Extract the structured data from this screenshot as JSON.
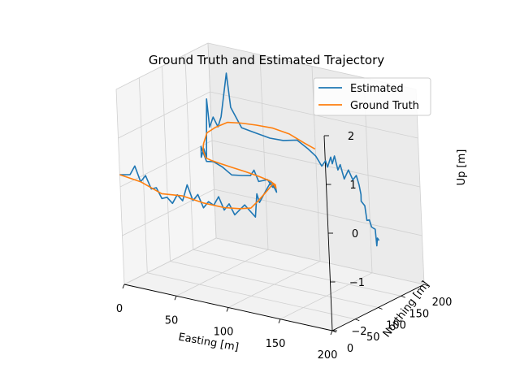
{
  "chart_data": {
    "type": "line",
    "projection": "3d",
    "title": "Ground Truth and Estimated Trajectory",
    "xlabel": "Easting [m]",
    "ylabel": "Northing [m]",
    "zlabel": "Up [m]",
    "xlim": [
      0,
      200
    ],
    "ylim": [
      0,
      200
    ],
    "zlim": [
      -2,
      2
    ],
    "xticks": [
      "0",
      "50",
      "100",
      "150",
      "200"
    ],
    "yticks": [
      "0",
      "50",
      "100",
      "150",
      "200"
    ],
    "zticks": [
      "−2",
      "−1",
      "0",
      "1",
      "2"
    ],
    "grid": true,
    "legend_position": "top-right",
    "series": [
      {
        "name": "Estimated",
        "color": "#1f77b4",
        "points": [
          [
            0,
            0,
            0.25
          ],
          [
            10,
            0,
            0.3
          ],
          [
            15,
            0,
            0.5
          ],
          [
            20,
            0,
            0.2
          ],
          [
            25,
            0,
            0.35
          ],
          [
            30,
            0,
            0.1
          ],
          [
            35,
            0,
            0.15
          ],
          [
            40,
            0,
            -0.05
          ],
          [
            45,
            0,
            0.0
          ],
          [
            50,
            0,
            -0.1
          ],
          [
            55,
            0,
            0.1
          ],
          [
            60,
            0,
            0.0
          ],
          [
            65,
            0,
            0.35
          ],
          [
            70,
            0,
            0.05
          ],
          [
            75,
            0,
            0.2
          ],
          [
            80,
            0,
            -0.05
          ],
          [
            85,
            0,
            0.1
          ],
          [
            90,
            0,
            0.05
          ],
          [
            95,
            0,
            0.25
          ],
          [
            100,
            0,
            0.0
          ],
          [
            105,
            0,
            0.15
          ],
          [
            110,
            0,
            -0.05
          ],
          [
            120,
            0,
            0.2
          ],
          [
            130,
            0,
            0.0
          ],
          [
            130,
            5,
            0.45
          ],
          [
            130,
            10,
            0.25
          ],
          [
            132,
            20,
            0.45
          ],
          [
            133,
            30,
            0.6
          ],
          [
            133,
            38,
            0.4
          ],
          [
            131,
            45,
            0.3
          ],
          [
            127,
            52,
            0.35
          ],
          [
            122,
            57,
            0.3
          ],
          [
            115,
            62,
            0.4
          ],
          [
            105,
            65,
            0.3
          ],
          [
            100,
            67,
            0.5
          ],
          [
            95,
            70,
            0.35
          ],
          [
            86,
            72,
            0.3
          ],
          [
            75,
            74,
            0.25
          ],
          [
            65,
            77,
            0.35
          ],
          [
            55,
            80,
            0.4
          ],
          [
            47,
            83,
            0.35
          ],
          [
            40,
            88,
            0.6
          ],
          [
            38,
            92,
            0.35
          ],
          [
            38,
            98,
            0.5
          ],
          [
            39,
            101,
            0.3
          ],
          [
            40,
            104,
            1.5
          ],
          [
            40,
            108,
            0.9
          ],
          [
            42,
            112,
            1.1
          ],
          [
            45,
            115,
            0.9
          ],
          [
            47,
            118,
            1.1
          ],
          [
            52,
            122,
            2.0
          ],
          [
            54,
            124,
            1.3
          ],
          [
            62,
            128,
            0.9
          ],
          [
            72,
            130,
            0.85
          ],
          [
            88,
            130,
            0.8
          ],
          [
            100,
            132,
            0.8
          ],
          [
            112,
            135,
            0.85
          ],
          [
            120,
            139,
            0.7
          ],
          [
            126,
            143,
            0.55
          ],
          [
            130,
            146,
            0.35
          ],
          [
            132,
            150,
            0.45
          ],
          [
            132,
            154,
            0.3
          ],
          [
            134,
            157,
            0.5
          ],
          [
            134,
            160,
            0.35
          ],
          [
            135,
            163,
            0.5
          ],
          [
            136,
            167,
            0.2
          ],
          [
            137,
            170,
            0.3
          ],
          [
            139,
            173,
            0.0
          ],
          [
            143,
            174,
            0.2
          ],
          [
            146,
            176,
            0.0
          ],
          [
            149,
            177,
            0.1
          ],
          [
            150,
            180,
            -0.1
          ],
          [
            151,
            181,
            -0.3
          ],
          [
            150,
            183,
            -0.45
          ],
          [
            152,
            186,
            -0.55
          ],
          [
            153,
            187,
            -0.85
          ],
          [
            154,
            190,
            -0.85
          ],
          [
            155,
            192,
            -1.0
          ],
          [
            157,
            195,
            -1.05
          ],
          [
            157,
            197,
            -1.4
          ],
          [
            157,
            199,
            -1.25
          ],
          [
            158,
            200,
            -1.3
          ]
        ]
      },
      {
        "name": "Ground Truth",
        "color": "#ff7f0e",
        "points": [
          [
            0,
            0,
            0.25
          ],
          [
            20,
            0,
            0.2
          ],
          [
            40,
            0,
            0.05
          ],
          [
            60,
            0,
            0.1
          ],
          [
            80,
            0,
            0.05
          ],
          [
            100,
            0,
            0.05
          ],
          [
            115,
            0,
            0.1
          ],
          [
            125,
            2,
            0.15
          ],
          [
            130,
            8,
            0.3
          ],
          [
            133,
            20,
            0.45
          ],
          [
            134,
            32,
            0.55
          ],
          [
            132,
            42,
            0.4
          ],
          [
            127,
            52,
            0.4
          ],
          [
            118,
            60,
            0.4
          ],
          [
            105,
            66,
            0.4
          ],
          [
            90,
            71,
            0.4
          ],
          [
            75,
            75,
            0.4
          ],
          [
            62,
            79,
            0.4
          ],
          [
            52,
            82,
            0.4
          ],
          [
            45,
            86,
            0.4
          ],
          [
            40,
            92,
            0.5
          ],
          [
            38,
            98,
            0.6
          ],
          [
            39,
            104,
            0.8
          ],
          [
            44,
            112,
            0.9
          ],
          [
            52,
            120,
            1.0
          ],
          [
            62,
            127,
            1.0
          ],
          [
            75,
            131,
            1.0
          ],
          [
            90,
            133,
            1.0
          ],
          [
            105,
            134,
            0.95
          ],
          [
            118,
            138,
            0.8
          ],
          [
            126,
            142,
            0.7
          ]
        ]
      }
    ]
  }
}
